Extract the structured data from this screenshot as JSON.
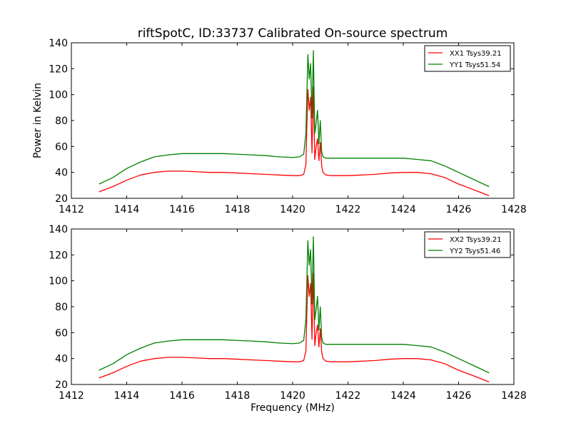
{
  "chart_data": {
    "type": "line",
    "title": "riftSpotC, ID:33737 Calibrated On-source spectrum",
    "xlabel": "Frequency (MHz)",
    "ylabel": "Power in Kelvin",
    "colors": {
      "xx": "#ff0000",
      "yy": "#008000"
    },
    "panels": [
      {
        "xlim": [
          1412,
          1428
        ],
        "ylim": [
          20,
          140
        ],
        "xticks": [
          "1412",
          "1414",
          "1416",
          "1418",
          "1420",
          "1422",
          "1424",
          "1426",
          "1428"
        ],
        "yticks": [
          "20",
          "40",
          "60",
          "80",
          "100",
          "120",
          "140"
        ],
        "legend_position": "top-right",
        "series": [
          {
            "name": "XX1 Tsys39.21",
            "color": "#ff0000",
            "x": [
              1413.0,
              1413.5,
              1414.0,
              1414.5,
              1415.0,
              1415.5,
              1416.0,
              1416.5,
              1417.0,
              1417.5,
              1418.0,
              1418.5,
              1419.0,
              1419.5,
              1420.0,
              1420.25,
              1420.4,
              1420.48,
              1420.55,
              1420.6,
              1420.65,
              1420.7,
              1420.75,
              1420.8,
              1420.85,
              1420.9,
              1420.95,
              1421.0,
              1421.05,
              1421.1,
              1421.2,
              1421.4,
              1422.0,
              1422.5,
              1423.0,
              1423.5,
              1424.0,
              1424.5,
              1425.0,
              1425.5,
              1426.0,
              1426.5,
              1427.1
            ],
            "y": [
              25,
              29,
              34,
              38,
              40,
              41,
              41,
              40.5,
              40,
              40,
              39.5,
              39,
              38.5,
              38,
              37.5,
              37.5,
              38.5,
              46,
              104,
              88,
              98,
              55,
              106,
              50,
              60,
              66,
              49,
              63,
              45,
              40,
              38,
              37.5,
              37.5,
              38,
              38.5,
              39.5,
              40,
              40,
              39,
              36,
              31,
              27,
              22
            ]
          },
          {
            "name": "YY1 Tsys51.54",
            "color": "#008000",
            "x": [
              1413.0,
              1413.5,
              1414.0,
              1414.5,
              1415.0,
              1415.5,
              1416.0,
              1416.5,
              1417.0,
              1417.5,
              1418.0,
              1418.5,
              1419.0,
              1419.5,
              1420.0,
              1420.25,
              1420.4,
              1420.48,
              1420.55,
              1420.6,
              1420.65,
              1420.7,
              1420.75,
              1420.8,
              1420.85,
              1420.9,
              1420.95,
              1421.0,
              1421.05,
              1421.1,
              1421.2,
              1421.4,
              1422.0,
              1422.5,
              1423.0,
              1423.5,
              1424.0,
              1424.5,
              1425.0,
              1425.5,
              1426.0,
              1426.5,
              1427.1
            ],
            "y": [
              31,
              36,
              43,
              48,
              52,
              53.5,
              54.5,
              54.5,
              54.5,
              54.5,
              54,
              53.5,
              53,
              52,
              51.5,
              52,
              54,
              70,
              131,
              112,
              124,
              82,
              134,
              70,
              78,
              88,
              62,
              80,
              56,
              52,
              51,
              51,
              51,
              51,
              51,
              51,
              51,
              50,
              49,
              45,
              40,
              35,
              29
            ]
          }
        ]
      },
      {
        "xlim": [
          1412,
          1428
        ],
        "ylim": [
          20,
          140
        ],
        "xticks": [
          "1412",
          "1414",
          "1416",
          "1418",
          "1420",
          "1422",
          "1424",
          "1426",
          "1428"
        ],
        "yticks": [
          "20",
          "40",
          "60",
          "80",
          "100",
          "120",
          "140"
        ],
        "legend_position": "top-right",
        "series": [
          {
            "name": "XX2 Tsys39.21",
            "color": "#ff0000",
            "x": [
              1413.0,
              1413.5,
              1414.0,
              1414.5,
              1415.0,
              1415.5,
              1416.0,
              1416.5,
              1417.0,
              1417.5,
              1418.0,
              1418.5,
              1419.0,
              1419.5,
              1420.0,
              1420.25,
              1420.4,
              1420.48,
              1420.55,
              1420.6,
              1420.65,
              1420.7,
              1420.75,
              1420.8,
              1420.85,
              1420.9,
              1420.95,
              1421.0,
              1421.05,
              1421.1,
              1421.2,
              1421.4,
              1422.0,
              1422.5,
              1423.0,
              1423.5,
              1424.0,
              1424.5,
              1425.0,
              1425.5,
              1426.0,
              1426.5,
              1427.1
            ],
            "y": [
              25,
              29,
              34,
              38,
              40,
              41,
              41,
              40.5,
              40,
              40,
              39.5,
              39,
              38.5,
              38,
              37.5,
              37.5,
              38.5,
              46,
              104,
              88,
              98,
              55,
              106,
              50,
              60,
              66,
              49,
              63,
              45,
              40,
              38,
              37.5,
              37.5,
              38,
              38.5,
              39.5,
              40,
              40,
              39,
              36,
              31,
              27,
              22
            ]
          },
          {
            "name": "YY2 Tsys51.46",
            "color": "#008000",
            "x": [
              1413.0,
              1413.5,
              1414.0,
              1414.5,
              1415.0,
              1415.5,
              1416.0,
              1416.5,
              1417.0,
              1417.5,
              1418.0,
              1418.5,
              1419.0,
              1419.5,
              1420.0,
              1420.25,
              1420.4,
              1420.48,
              1420.55,
              1420.6,
              1420.65,
              1420.7,
              1420.75,
              1420.8,
              1420.85,
              1420.9,
              1420.95,
              1421.0,
              1421.05,
              1421.1,
              1421.2,
              1421.4,
              1422.0,
              1422.5,
              1423.0,
              1423.5,
              1424.0,
              1424.5,
              1425.0,
              1425.5,
              1426.0,
              1426.5,
              1427.1
            ],
            "y": [
              31,
              36,
              43,
              48,
              52,
              53.5,
              54.5,
              54.5,
              54.5,
              54.5,
              54,
              53.5,
              53,
              52,
              51.5,
              52,
              54,
              70,
              131,
              112,
              124,
              82,
              134,
              70,
              78,
              88,
              62,
              80,
              56,
              52,
              51,
              51,
              51,
              51,
              51,
              51,
              51,
              50,
              49,
              45,
              40,
              35,
              29
            ]
          }
        ]
      }
    ]
  }
}
